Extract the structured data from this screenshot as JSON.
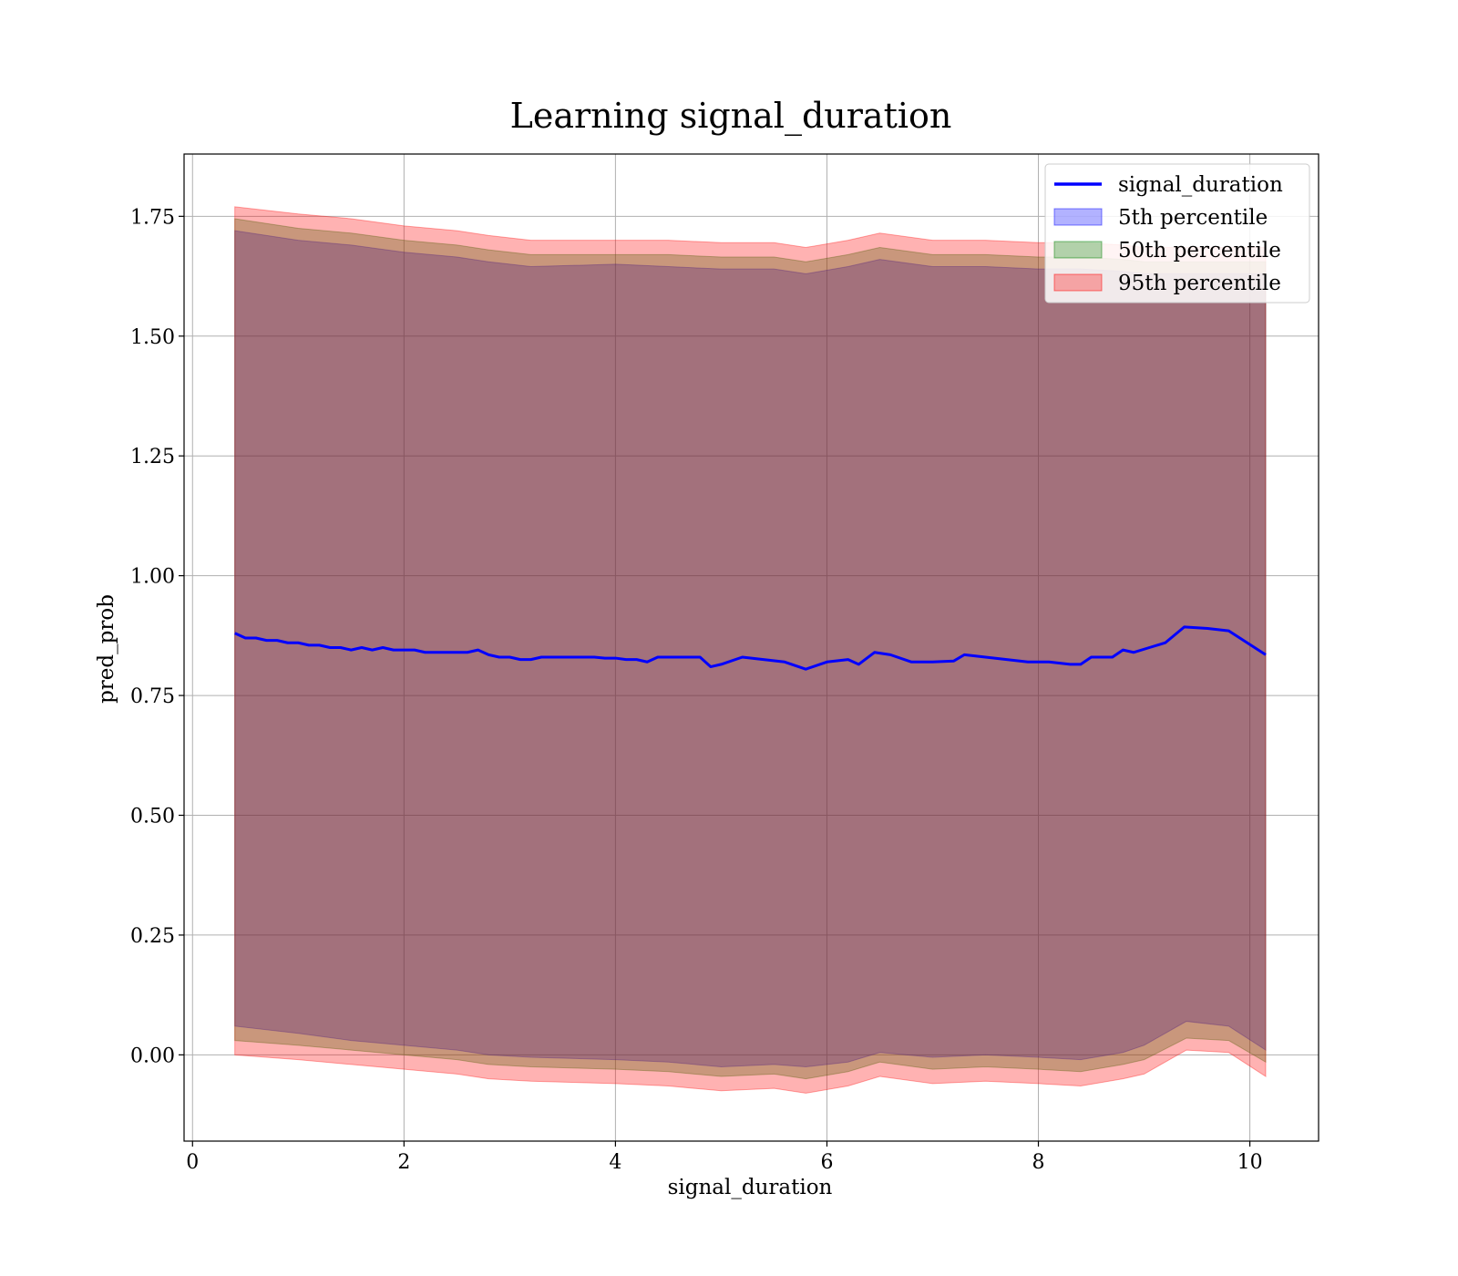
{
  "chart_data": {
    "type": "line",
    "title": "Learning signal_duration",
    "xlabel": "signal_duration",
    "ylabel": "pred_prob",
    "xlim": [
      -0.08,
      10.65
    ],
    "ylim": [
      -0.18,
      1.88
    ],
    "xticks": [
      0,
      2,
      4,
      6,
      8,
      10
    ],
    "xtick_labels": [
      "0",
      "2",
      "4",
      "6",
      "8",
      "10"
    ],
    "yticks": [
      0.0,
      0.25,
      0.5,
      0.75,
      1.0,
      1.25,
      1.5,
      1.75
    ],
    "ytick_labels": [
      "0.00",
      "0.25",
      "0.50",
      "0.75",
      "1.00",
      "1.25",
      "1.50",
      "1.75"
    ],
    "grid": true,
    "legend_position": "top-right",
    "colors": {
      "line": "#0000ff",
      "band_5th": "#0000ff",
      "band_50th": "#008000",
      "band_95th": "#ff0000"
    },
    "series": [
      {
        "name": "signal_duration",
        "kind": "line",
        "x": [
          0.4,
          0.5,
          0.6,
          0.7,
          0.8,
          0.9,
          1.0,
          1.1,
          1.2,
          1.3,
          1.4,
          1.5,
          1.6,
          1.7,
          1.8,
          1.9,
          2.0,
          2.1,
          2.2,
          2.3,
          2.4,
          2.5,
          2.6,
          2.7,
          2.8,
          2.9,
          3.0,
          3.1,
          3.2,
          3.3,
          3.4,
          3.5,
          3.6,
          3.7,
          3.8,
          3.9,
          4.0,
          4.1,
          4.2,
          4.3,
          4.4,
          4.5,
          4.6,
          4.7,
          4.8,
          4.9,
          5.0,
          5.2,
          5.4,
          5.6,
          5.8,
          6.0,
          6.2,
          6.3,
          6.45,
          6.6,
          6.8,
          7.0,
          7.2,
          7.3,
          7.5,
          7.7,
          7.9,
          8.1,
          8.3,
          8.4,
          8.5,
          8.7,
          8.8,
          8.9,
          9.05,
          9.2,
          9.38,
          9.6,
          9.8,
          10.15
        ],
        "y": [
          0.88,
          0.87,
          0.87,
          0.865,
          0.865,
          0.86,
          0.86,
          0.855,
          0.855,
          0.85,
          0.85,
          0.845,
          0.85,
          0.845,
          0.85,
          0.845,
          0.845,
          0.845,
          0.84,
          0.84,
          0.84,
          0.84,
          0.84,
          0.845,
          0.835,
          0.83,
          0.83,
          0.825,
          0.825,
          0.83,
          0.83,
          0.83,
          0.83,
          0.83,
          0.83,
          0.828,
          0.828,
          0.825,
          0.825,
          0.82,
          0.83,
          0.83,
          0.83,
          0.83,
          0.83,
          0.81,
          0.815,
          0.83,
          0.825,
          0.82,
          0.805,
          0.82,
          0.825,
          0.815,
          0.84,
          0.835,
          0.82,
          0.82,
          0.822,
          0.835,
          0.83,
          0.825,
          0.82,
          0.82,
          0.815,
          0.815,
          0.83,
          0.83,
          0.845,
          0.84,
          0.85,
          0.86,
          0.893,
          0.89,
          0.885,
          0.835
        ]
      },
      {
        "name": "5th percentile",
        "kind": "band",
        "x": [
          0.4,
          1.0,
          1.5,
          2.0,
          2.5,
          2.8,
          3.2,
          4.0,
          4.5,
          5.0,
          5.5,
          5.8,
          6.2,
          6.5,
          7.0,
          7.5,
          8.0,
          8.4,
          8.8,
          9.0,
          9.4,
          9.8,
          10.15
        ],
        "lower": [
          0.06,
          0.045,
          0.03,
          0.02,
          0.01,
          0.0,
          -0.005,
          -0.01,
          -0.015,
          -0.025,
          -0.02,
          -0.025,
          -0.015,
          0.005,
          -0.005,
          0.0,
          -0.005,
          -0.01,
          0.005,
          0.02,
          0.07,
          0.06,
          0.01
        ],
        "upper": [
          1.72,
          1.7,
          1.69,
          1.675,
          1.665,
          1.655,
          1.645,
          1.65,
          1.645,
          1.64,
          1.64,
          1.63,
          1.645,
          1.66,
          1.645,
          1.645,
          1.64,
          1.64,
          1.635,
          1.63,
          1.63,
          1.63,
          1.63
        ]
      },
      {
        "name": "50th percentile",
        "kind": "band",
        "x": [
          0.4,
          1.0,
          1.5,
          2.0,
          2.5,
          2.8,
          3.2,
          4.0,
          4.5,
          5.0,
          5.5,
          5.8,
          6.2,
          6.5,
          7.0,
          7.5,
          8.0,
          8.4,
          8.8,
          9.0,
          9.4,
          9.8,
          10.15
        ],
        "lower": [
          0.03,
          0.02,
          0.01,
          0.0,
          -0.01,
          -0.02,
          -0.025,
          -0.03,
          -0.035,
          -0.045,
          -0.04,
          -0.05,
          -0.035,
          -0.015,
          -0.03,
          -0.025,
          -0.03,
          -0.035,
          -0.02,
          -0.01,
          0.035,
          0.03,
          -0.015
        ],
        "upper": [
          1.745,
          1.725,
          1.715,
          1.7,
          1.69,
          1.68,
          1.67,
          1.67,
          1.67,
          1.665,
          1.665,
          1.655,
          1.67,
          1.685,
          1.67,
          1.67,
          1.665,
          1.665,
          1.66,
          1.655,
          1.655,
          1.655,
          1.655
        ]
      },
      {
        "name": "95th percentile",
        "kind": "band",
        "x": [
          0.4,
          1.0,
          1.5,
          2.0,
          2.5,
          2.8,
          3.2,
          4.0,
          4.5,
          5.0,
          5.5,
          5.8,
          6.2,
          6.5,
          7.0,
          7.5,
          8.0,
          8.4,
          8.8,
          9.0,
          9.4,
          9.8,
          10.15
        ],
        "lower": [
          0.0,
          -0.01,
          -0.02,
          -0.03,
          -0.04,
          -0.05,
          -0.055,
          -0.06,
          -0.065,
          -0.075,
          -0.07,
          -0.08,
          -0.065,
          -0.045,
          -0.06,
          -0.055,
          -0.06,
          -0.065,
          -0.05,
          -0.04,
          0.01,
          0.005,
          -0.045
        ],
        "upper": [
          1.77,
          1.755,
          1.745,
          1.73,
          1.72,
          1.71,
          1.7,
          1.7,
          1.7,
          1.695,
          1.695,
          1.685,
          1.7,
          1.715,
          1.7,
          1.7,
          1.695,
          1.695,
          1.69,
          1.685,
          1.685,
          1.685,
          1.685
        ]
      }
    ]
  }
}
